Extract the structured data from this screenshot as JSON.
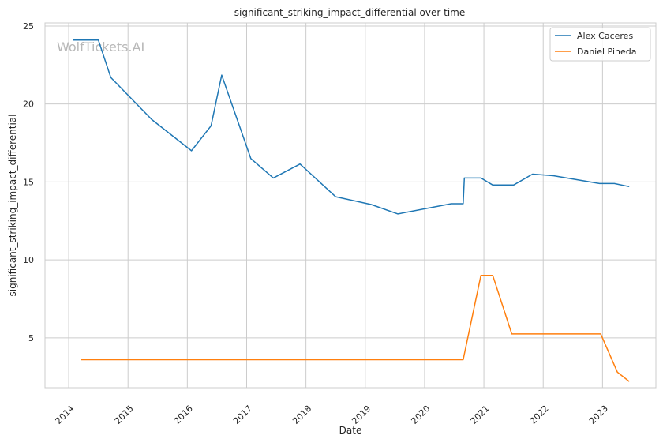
{
  "chart_data": {
    "type": "line",
    "title": "significant_striking_impact_differential over time",
    "xlabel": "Date",
    "ylabel": "significant_striking_impact_differential",
    "watermark": "WolfTickets.AI",
    "xlim": [
      2013.6,
      2023.9
    ],
    "ylim": [
      1.8,
      25.2
    ],
    "xticks": [
      2014,
      2015,
      2016,
      2017,
      2018,
      2019,
      2020,
      2021,
      2022,
      2023
    ],
    "xtick_labels": [
      "2014",
      "2015",
      "2016",
      "2017",
      "2018",
      "2019",
      "2020",
      "2021",
      "2022",
      "2023"
    ],
    "yticks": [
      5,
      10,
      15,
      20,
      25
    ],
    "ytick_labels": [
      "5",
      "10",
      "15",
      "20",
      "25"
    ],
    "grid": true,
    "legend_position": "top-right",
    "series": [
      {
        "name": "Alex Caceres",
        "color": "#1f77b4",
        "x": [
          2014.07,
          2014.5,
          2014.71,
          2015.4,
          2016.07,
          2016.4,
          2016.58,
          2017.07,
          2017.45,
          2017.9,
          2018.5,
          2019.1,
          2019.55,
          2020.45,
          2020.65,
          2020.67,
          2020.95,
          2021.15,
          2021.5,
          2021.82,
          2022.17,
          2022.95,
          2023.2,
          2023.45
        ],
        "y": [
          24.1,
          24.1,
          21.7,
          19.0,
          17.0,
          18.6,
          21.85,
          16.5,
          15.25,
          16.15,
          14.05,
          13.55,
          12.95,
          13.6,
          13.6,
          15.25,
          15.25,
          14.8,
          14.8,
          15.5,
          15.4,
          14.9,
          14.9,
          14.7
        ]
      },
      {
        "name": "Daniel Pineda",
        "color": "#ff7f0e",
        "x": [
          2014.2,
          2020.65,
          2020.95,
          2021.15,
          2021.47,
          2022.97,
          2023.25,
          2023.45
        ],
        "y": [
          3.6,
          3.6,
          9.0,
          9.0,
          5.25,
          5.25,
          2.8,
          2.2
        ]
      }
    ]
  }
}
